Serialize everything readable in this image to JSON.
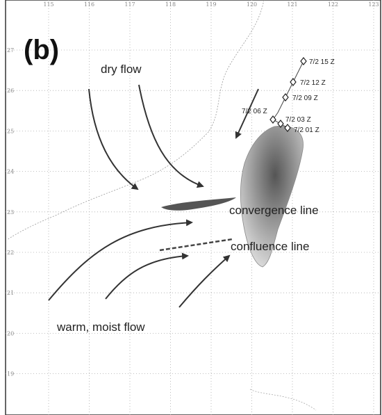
{
  "panel_label": "(b)",
  "annotations": {
    "dry_flow": "dry flow",
    "convergence_line": "convergence line",
    "confluence_line": "confluence line",
    "warm_moist_flow": "warm, moist flow"
  },
  "longitude_labels": [
    "115",
    "116",
    "117",
    "118",
    "119",
    "120",
    "121",
    "122",
    "123"
  ],
  "latitude_labels": [
    "27",
    "26",
    "25",
    "24",
    "23",
    "22",
    "21",
    "20",
    "19"
  ],
  "track_labels": [
    "7/2 15 Z",
    "7/2 12 Z",
    "7/2 09 Z",
    "7/2 06 Z",
    "7/2 03 Z",
    "7/2 01 Z"
  ]
}
